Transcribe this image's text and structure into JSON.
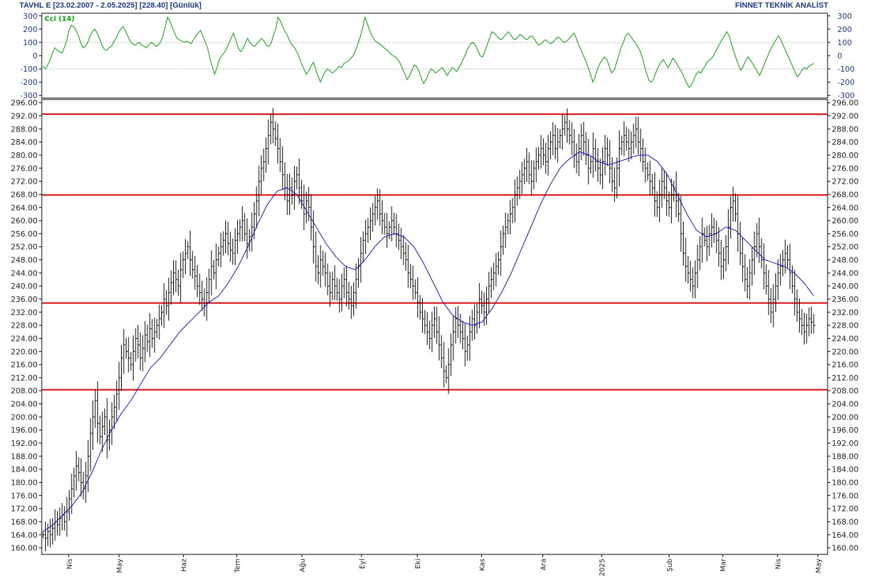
{
  "header": {
    "title": "TAVHL E  [23.02.2007 - 2.05.2025]  [228.40]  [Günlük]",
    "brand": "FİNNET TEKNİK ANALİST"
  },
  "colors": {
    "price_bar": "#000000",
    "moving_average": "#1010c8",
    "cci": "#00a000",
    "levels": "#dd0000",
    "grid": "#b8b8b8",
    "axis_text": "#202020",
    "cci_axis_text": "#1a3a8c",
    "header_text": "#1a3a8c"
  },
  "chart_data": [
    {
      "type": "line",
      "panel": "indicator",
      "title": "Cci (14)",
      "ylim": [
        -320,
        320
      ],
      "yticks": [
        300,
        200,
        100,
        0,
        -100,
        -200,
        -300
      ],
      "grid_values": [
        100,
        -100
      ],
      "series": [
        {
          "name": "Cci (14)",
          "values": [
            -80,
            -100,
            -70,
            -30,
            20,
            60,
            40,
            30,
            20,
            60,
            110,
            190,
            230,
            220,
            190,
            150,
            100,
            60,
            70,
            100,
            150,
            180,
            200,
            170,
            130,
            80,
            50,
            40,
            60,
            70,
            100,
            130,
            170,
            200,
            220,
            190,
            150,
            110,
            90,
            80,
            90,
            100,
            80,
            70,
            60,
            80,
            100,
            90,
            70,
            80,
            100,
            150,
            220,
            290,
            260,
            210,
            170,
            130,
            120,
            110,
            100,
            110,
            100,
            90,
            120,
            150,
            170,
            190,
            150,
            100,
            60,
            -20,
            -80,
            -140,
            -90,
            -30,
            0,
            20,
            50,
            90,
            130,
            170,
            120,
            60,
            30,
            50,
            90,
            130,
            100,
            80,
            70,
            90,
            110,
            130,
            110,
            80,
            70,
            90,
            150,
            200,
            290,
            260,
            220,
            180,
            150,
            110,
            80,
            60,
            30,
            -10,
            -60,
            -100,
            -140,
            -120,
            -80,
            -50,
            -100,
            -150,
            -200,
            -160,
            -120,
            -100,
            -110,
            -130,
            -120,
            -100,
            -80,
            -90,
            -60,
            -50,
            -40,
            -20,
            0,
            40,
            90,
            140,
            210,
            290,
            240,
            190,
            150,
            120,
            100,
            90,
            80,
            60,
            50,
            30,
            10,
            0,
            -10,
            -30,
            -60,
            -100,
            -140,
            -180,
            -150,
            -110,
            -70,
            -80,
            -120,
            -170,
            -210,
            -180,
            -140,
            -100,
            -110,
            -130,
            -120,
            -100,
            -90,
            -120,
            -150,
            -120,
            -90,
            -100,
            -120,
            -90,
            -60,
            -20,
            20,
            60,
            90,
            100,
            80,
            40,
            0,
            -10,
            30,
            80,
            130,
            180,
            170,
            150,
            130,
            120,
            140,
            160,
            180,
            160,
            130,
            120,
            140,
            160,
            150,
            130,
            120,
            140,
            150,
            130,
            100,
            80,
            90,
            110,
            120,
            100,
            90,
            100,
            120,
            140,
            130,
            110,
            100,
            110,
            130,
            150,
            170,
            130,
            80,
            40,
            0,
            -40,
            -90,
            -140,
            -200,
            -160,
            -100,
            -60,
            -30,
            -10,
            -30,
            -80,
            -130,
            -110,
            -60,
            0,
            60,
            100,
            150,
            170,
            150,
            120,
            100,
            70,
            40,
            -10,
            -80,
            -140,
            -190,
            -200,
            -170,
            -120,
            -80,
            -50,
            -30,
            -60,
            -90,
            -60,
            -20,
            -40,
            -70,
            -100,
            -130,
            -170,
            -210,
            -240,
            -220,
            -180,
            -140,
            -120,
            -130,
            -100,
            -70,
            -40,
            -30,
            -10,
            20,
            60,
            90,
            120,
            150,
            180,
            150,
            90,
            30,
            -20,
            -70,
            -110,
            -80,
            -40,
            -10,
            -30,
            -60,
            -90,
            -120,
            -150,
            -110,
            -60,
            -20,
            20,
            60,
            90,
            120,
            150,
            120,
            80,
            40,
            0,
            -40,
            -80,
            -120,
            -160,
            -140,
            -110,
            -90,
            -100,
            -80,
            -70,
            -60
          ]
        }
      ]
    },
    {
      "type": "ohlc",
      "panel": "price",
      "ylim": [
        158,
        297
      ],
      "yticks": [
        "296.00",
        "292.00",
        "288.00",
        "284.00",
        "280.00",
        "276.00",
        "272.00",
        "268.00",
        "264.00",
        "260.00",
        "256.00",
        "252.00",
        "248.00",
        "244.00",
        "240.00",
        "236.00",
        "232.00",
        "228.00",
        "224.00",
        "220.00",
        "216.00",
        "212.00",
        "208.00",
        "204.00",
        "200.00",
        "196.00",
        "192.00",
        "188.00",
        "184.00",
        "180.00",
        "176.00",
        "172.00",
        "168.00",
        "164.00",
        "160.00"
      ],
      "horizontal_levels": [
        292.5,
        267.8,
        234.8,
        208.3
      ],
      "x_labels": [
        {
          "label": "Nis",
          "frac": 0.033
        },
        {
          "label": "May",
          "frac": 0.098
        },
        {
          "label": "Haz",
          "frac": 0.181
        },
        {
          "label": "Tem",
          "frac": 0.25
        },
        {
          "label": "Ağu",
          "frac": 0.334
        },
        {
          "label": "Eyl",
          "frac": 0.411
        },
        {
          "label": "Eki",
          "frac": 0.483
        },
        {
          "label": "Kas",
          "frac": 0.566
        },
        {
          "label": "Ara",
          "frac": 0.645
        },
        {
          "label": "2025",
          "frac": 0.721
        },
        {
          "label": "Şub",
          "frac": 0.808
        },
        {
          "label": "Mar",
          "frac": 0.877
        },
        {
          "label": "Nis",
          "frac": 0.948
        },
        {
          "label": "May",
          "frac": 1.0
        }
      ],
      "close_series": {
        "name": "Close",
        "values": [
          164,
          163,
          165,
          164,
          166,
          168,
          167,
          169,
          170,
          168,
          171,
          175,
          178,
          182,
          185,
          183,
          180,
          178,
          182,
          188,
          195,
          200,
          205,
          198,
          194,
          197,
          200,
          193,
          196,
          200,
          203,
          207,
          212,
          218,
          222,
          220,
          218,
          216,
          220,
          224,
          222,
          218,
          221,
          225,
          223,
          227,
          224,
          226,
          228,
          230,
          232,
          236,
          234,
          238,
          241,
          244,
          242,
          240,
          245,
          248,
          250,
          252,
          248,
          245,
          243,
          240,
          238,
          236,
          234,
          238,
          242,
          246,
          244,
          248,
          250,
          252,
          254,
          256,
          253,
          251,
          250,
          254,
          256,
          258,
          260,
          256,
          253,
          255,
          258,
          262,
          266,
          272,
          276,
          278,
          282,
          286,
          290,
          288,
          285,
          282,
          278,
          274,
          270,
          266,
          270,
          268,
          272,
          274,
          270,
          266,
          262,
          266,
          264,
          258,
          252,
          246,
          244,
          248,
          246,
          244,
          240,
          238,
          242,
          240,
          238,
          236,
          240,
          242,
          238,
          236,
          234,
          238,
          242,
          246,
          250,
          254,
          256,
          258,
          260,
          262,
          264,
          266,
          262,
          260,
          258,
          256,
          258,
          260,
          258,
          256,
          254,
          252,
          250,
          248,
          244,
          242,
          240,
          238,
          235,
          232,
          230,
          228,
          226,
          224,
          228,
          230,
          226,
          222,
          218,
          214,
          212,
          216,
          222,
          226,
          230,
          228,
          226,
          224,
          220,
          222,
          226,
          230,
          228,
          232,
          236,
          234,
          232,
          236,
          240,
          242,
          244,
          246,
          248,
          252,
          256,
          258,
          260,
          262,
          264,
          268,
          270,
          272,
          274,
          276,
          278,
          274,
          272,
          276,
          278,
          280,
          282,
          280,
          278,
          282,
          284,
          286,
          282,
          284,
          286,
          288,
          290,
          288,
          286,
          284,
          280,
          278,
          282,
          286,
          284,
          280,
          276,
          278,
          282,
          278,
          276,
          274,
          278,
          282,
          280,
          276,
          272,
          270,
          276,
          282,
          284,
          286,
          284,
          282,
          284,
          286,
          288,
          284,
          282,
          278,
          276,
          274,
          272,
          270,
          266,
          264,
          268,
          272,
          270,
          266,
          264,
          268,
          270,
          266,
          262,
          256,
          250,
          246,
          244,
          242,
          240,
          244,
          248,
          252,
          256,
          254,
          252,
          256,
          258,
          256,
          254,
          250,
          246,
          248,
          252,
          258,
          264,
          266,
          262,
          256,
          250,
          246,
          242,
          240,
          244,
          248,
          252,
          256,
          252,
          248,
          244,
          240,
          236,
          232,
          236,
          240,
          244,
          246,
          248,
          250,
          248,
          244,
          240,
          236,
          232,
          230,
          228,
          226,
          228,
          230,
          229,
          228
        ]
      },
      "ma_series": {
        "name": "Moving average",
        "values": [
          165,
          167,
          170,
          173,
          177,
          183,
          190,
          196,
          201,
          205,
          210,
          215,
          218,
          222,
          226,
          229,
          232,
          235,
          237,
          241,
          246,
          252,
          259,
          265,
          269,
          270,
          268,
          263,
          258,
          253,
          249,
          246,
          245,
          248,
          252,
          255,
          256,
          255,
          252,
          247,
          241,
          235,
          231,
          229,
          228,
          229,
          233,
          238,
          244,
          251,
          258,
          265,
          271,
          276,
          279,
          281,
          280,
          278,
          277,
          278,
          279,
          280,
          280,
          278,
          274,
          268,
          262,
          257,
          255,
          256,
          258,
          257,
          254,
          251,
          248,
          247,
          246,
          244,
          241,
          237
        ]
      }
    }
  ]
}
